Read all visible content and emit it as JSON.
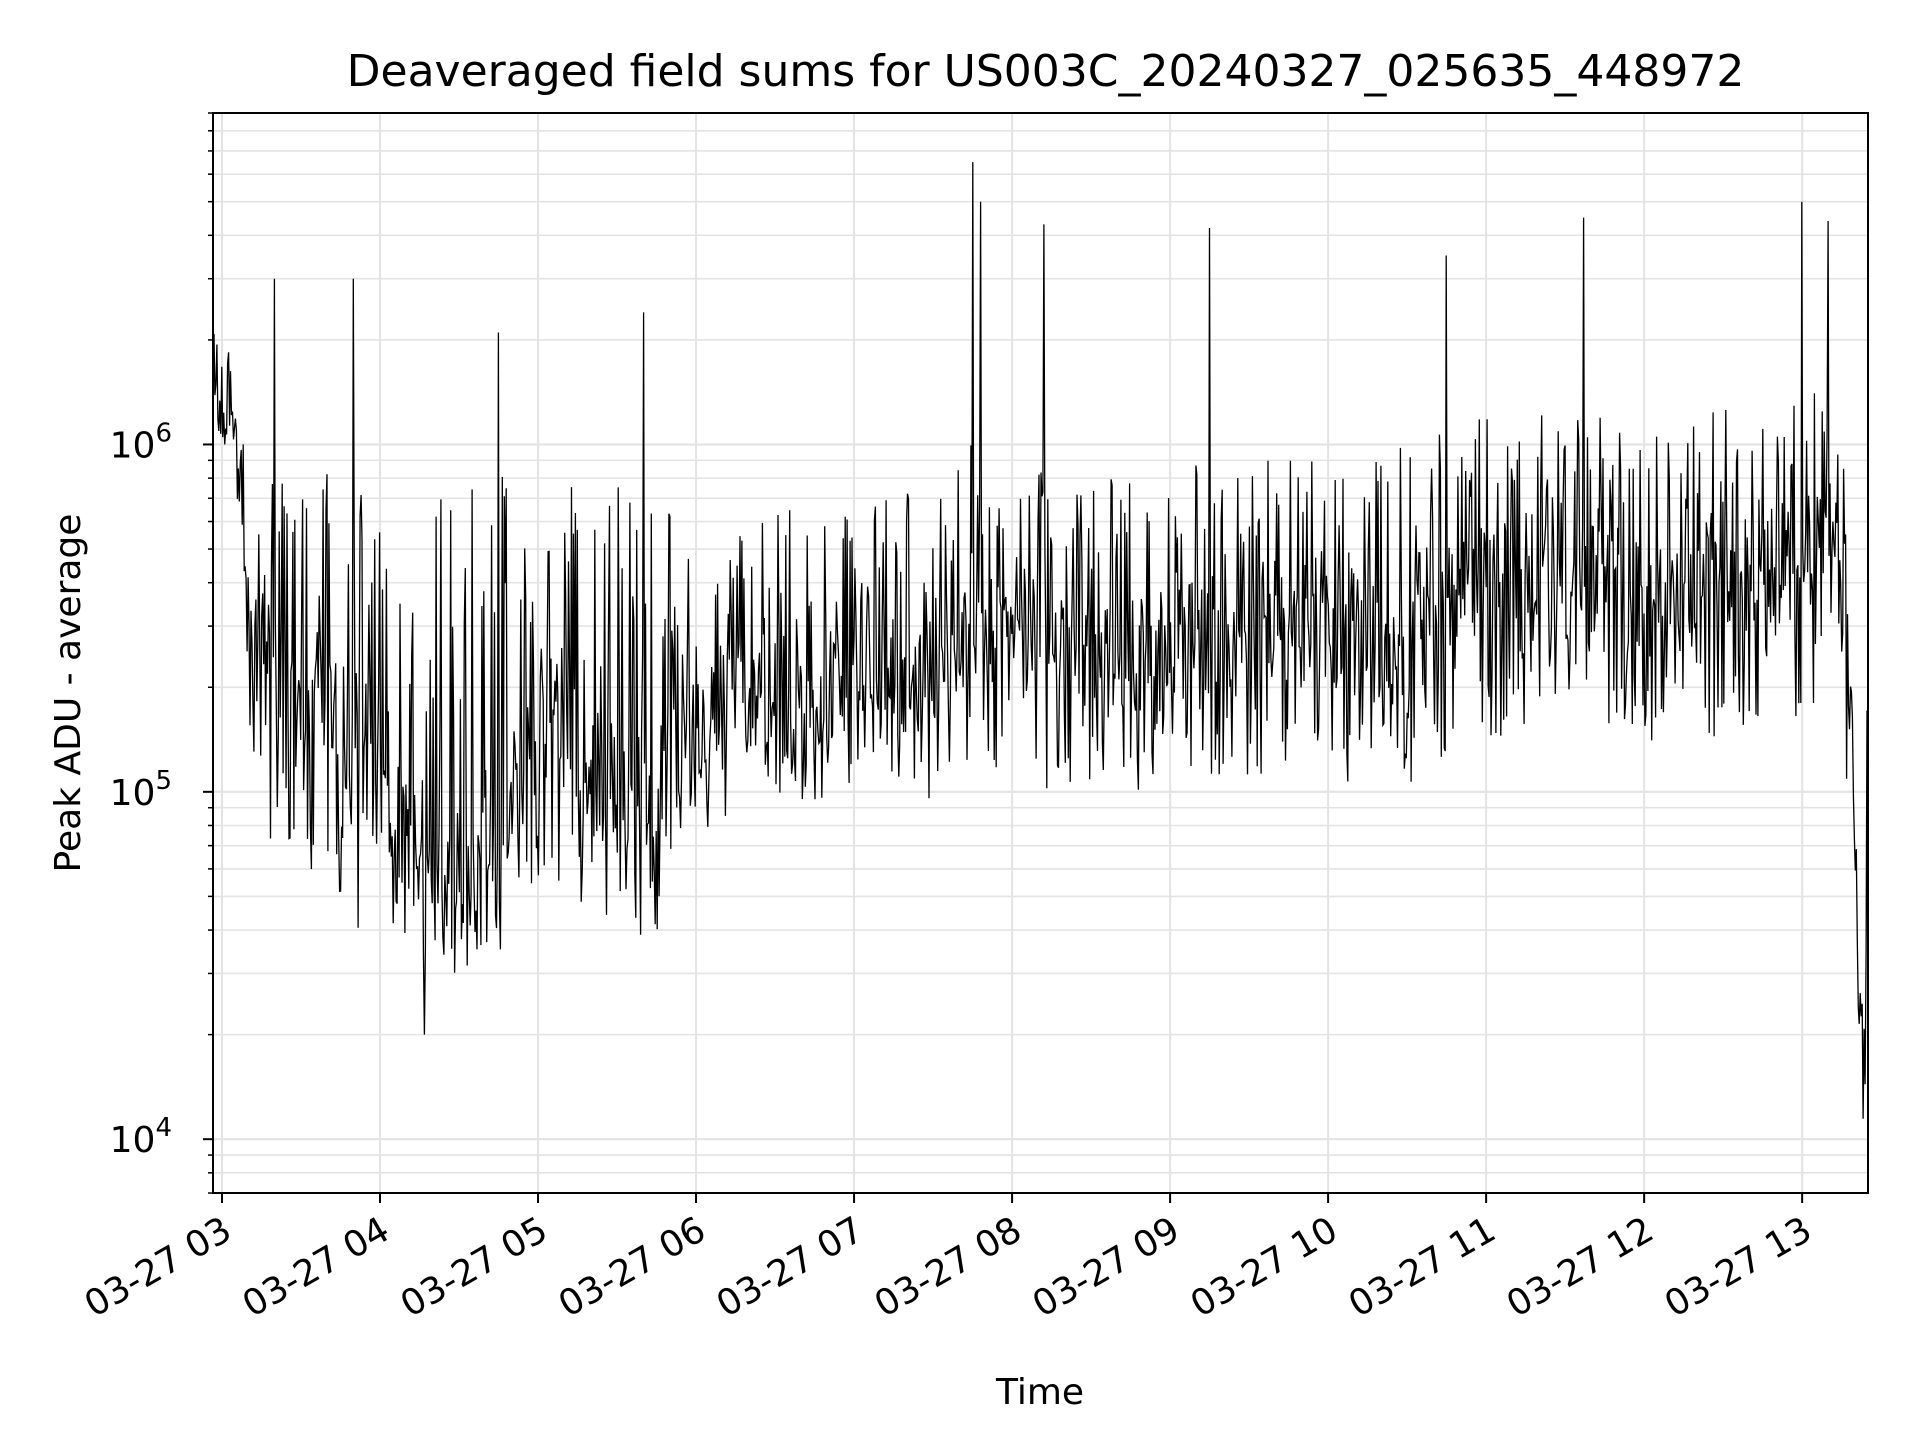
{
  "chart_data": {
    "type": "line",
    "title": "Deaveraged field sums for US003C_20240327_025635_448972",
    "xlabel": "Time",
    "ylabel": "Peak ADU - average",
    "yscale": "log",
    "ylim": [
      7000,
      9000000
    ],
    "xlim": [
      "2024-03-27 02:56:35",
      "2024-03-27 13:25:00"
    ],
    "x_ticks": [
      "2024-03-27 03:00",
      "2024-03-27 04:00",
      "2024-03-27 05:00",
      "2024-03-27 06:00",
      "2024-03-27 07:00",
      "2024-03-27 08:00",
      "2024-03-27 09:00",
      "2024-03-27 10:00",
      "2024-03-27 11:00",
      "2024-03-27 12:00",
      "2024-03-27 13:00"
    ],
    "x_tick_labels": [
      "03-27 03",
      "03-27 04",
      "03-27 05",
      "03-27 06",
      "03-27 07",
      "03-27 08",
      "03-27 09",
      "03-27 10",
      "03-27 11",
      "03-27 12",
      "03-27 13"
    ],
    "y_ticks": [
      10000,
      100000,
      1000000
    ],
    "y_tick_labels": [
      {
        "base": "10",
        "exp": "4"
      },
      {
        "base": "10",
        "exp": "5"
      },
      {
        "base": "10",
        "exp": "6"
      }
    ],
    "grid": true,
    "color": "#000000",
    "series": [
      {
        "x": [
          "2024-03-27 02:56:35",
          "2024-03-27 03:02",
          "2024-03-27 03:05",
          "2024-03-27 03:08",
          "2024-03-27 03:10",
          "2024-03-27 03:12",
          "2024-03-27 03:15",
          "2024-03-27 03:20",
          "2024-03-27 03:25",
          "2024-03-27 03:30",
          "2024-03-27 03:35",
          "2024-03-27 03:40",
          "2024-03-27 03:45",
          "2024-03-27 03:50",
          "2024-03-27 03:55",
          "2024-03-27 04:00",
          "2024-03-27 04:05",
          "2024-03-27 04:10",
          "2024-03-27 04:15",
          "2024-03-27 04:20",
          "2024-03-27 04:25",
          "2024-03-27 04:30",
          "2024-03-27 04:35",
          "2024-03-27 04:40",
          "2024-03-27 04:45",
          "2024-03-27 04:50",
          "2024-03-27 04:55",
          "2024-03-27 05:00",
          "2024-03-27 05:10",
          "2024-03-27 05:20",
          "2024-03-27 05:30",
          "2024-03-27 05:40",
          "2024-03-27 05:45",
          "2024-03-27 05:50",
          "2024-03-27 06:00",
          "2024-03-27 06:15",
          "2024-03-27 06:30",
          "2024-03-27 06:45",
          "2024-03-27 07:00",
          "2024-03-27 07:15",
          "2024-03-27 07:30",
          "2024-03-27 07:45",
          "2024-03-27 08:00",
          "2024-03-27 08:15",
          "2024-03-27 08:30",
          "2024-03-27 08:45",
          "2024-03-27 09:00",
          "2024-03-27 09:15",
          "2024-03-27 09:30",
          "2024-03-27 09:45",
          "2024-03-27 10:00",
          "2024-03-27 10:15",
          "2024-03-27 10:30",
          "2024-03-27 10:45",
          "2024-03-27 11:00",
          "2024-03-27 11:15",
          "2024-03-27 11:30",
          "2024-03-27 11:45",
          "2024-03-27 12:00",
          "2024-03-27 12:15",
          "2024-03-27 12:30",
          "2024-03-27 12:45",
          "2024-03-27 13:00",
          "2024-03-27 13:10",
          "2024-03-27 13:15",
          "2024-03-27 13:18",
          "2024-03-27 13:20",
          "2024-03-27 13:22",
          "2024-03-27 13:24"
        ],
        "y": [
          1400000,
          1300000,
          1200000,
          700000,
          450000,
          350000,
          300000,
          250000,
          230000,
          220000,
          210000,
          200000,
          180000,
          150000,
          120000,
          100000,
          90000,
          75000,
          70000,
          65000,
          60000,
          60000,
          55000,
          60000,
          60000,
          80000,
          150000,
          200000,
          150000,
          120000,
          110000,
          100000,
          80000,
          120000,
          140000,
          180000,
          200000,
          190000,
          200000,
          200000,
          240000,
          260000,
          290000,
          280000,
          250000,
          240000,
          260000,
          280000,
          290000,
          300000,
          290000,
          270000,
          300000,
          330000,
          380000,
          430000,
          410000,
          370000,
          360000,
          370000,
          410000,
          430000,
          460000,
          470000,
          460000,
          180000,
          60000,
          20000,
          25000
        ],
        "upper": [
          1600000,
          1600000,
          1500000,
          1300000,
          1100000,
          900000,
          800000,
          800000,
          800000,
          800000,
          900000,
          950000,
          850000,
          800000,
          750000,
          700000,
          700000,
          650000,
          650000,
          700000,
          700000,
          750000,
          750000,
          800000,
          850000,
          900000,
          900000,
          900000,
          800000,
          750000,
          800000,
          850000,
          800000,
          850000,
          700000,
          700000,
          700000,
          700000,
          800000,
          800000,
          900000,
          1000000,
          1100000,
          900000,
          850000,
          800000,
          850000,
          900000,
          900000,
          900000,
          900000,
          900000,
          1000000,
          1100000,
          1200000,
          1300000,
          1200000,
          1200000,
          1200000,
          1200000,
          1300000,
          1400000,
          1400000,
          1500000,
          1500000,
          300000,
          100000,
          50000,
          200000
        ],
        "lower": [
          1100000,
          1000000,
          950000,
          300000,
          150000,
          110000,
          90000,
          65000,
          60000,
          55000,
          50000,
          45000,
          45000,
          40000,
          40000,
          38000,
          35000,
          30000,
          30000,
          32000,
          30000,
          30000,
          32000,
          30000,
          32000,
          40000,
          50000,
          55000,
          50000,
          45000,
          40000,
          35000,
          30000,
          50000,
          70000,
          80000,
          90000,
          95000,
          100000,
          100000,
          95000,
          110000,
          120000,
          100000,
          100000,
          95000,
          110000,
          100000,
          110000,
          110000,
          110000,
          100000,
          100000,
          110000,
          140000,
          150000,
          140000,
          140000,
          140000,
          140000,
          140000,
          160000,
          160000,
          200000,
          180000,
          80000,
          20000,
          10000,
          12000
        ],
        "spikes": [
          {
            "x": "2024-03-27 03:20",
            "y": 3000000
          },
          {
            "x": "2024-03-27 03:50",
            "y": 3000000
          },
          {
            "x": "2024-03-27 04:17",
            "y": 20000
          },
          {
            "x": "2024-03-27 04:45",
            "y": 2100000
          },
          {
            "x": "2024-03-27 05:40",
            "y": 2400000
          },
          {
            "x": "2024-03-27 07:45",
            "y": 6500000
          },
          {
            "x": "2024-03-27 07:48",
            "y": 5000000
          },
          {
            "x": "2024-03-27 08:12",
            "y": 4300000
          },
          {
            "x": "2024-03-27 09:15",
            "y": 4200000
          },
          {
            "x": "2024-03-27 10:45",
            "y": 3500000
          },
          {
            "x": "2024-03-27 11:37",
            "y": 4500000
          },
          {
            "x": "2024-03-27 13:00",
            "y": 5000000
          },
          {
            "x": "2024-03-27 13:10",
            "y": 4400000
          }
        ]
      }
    ]
  }
}
